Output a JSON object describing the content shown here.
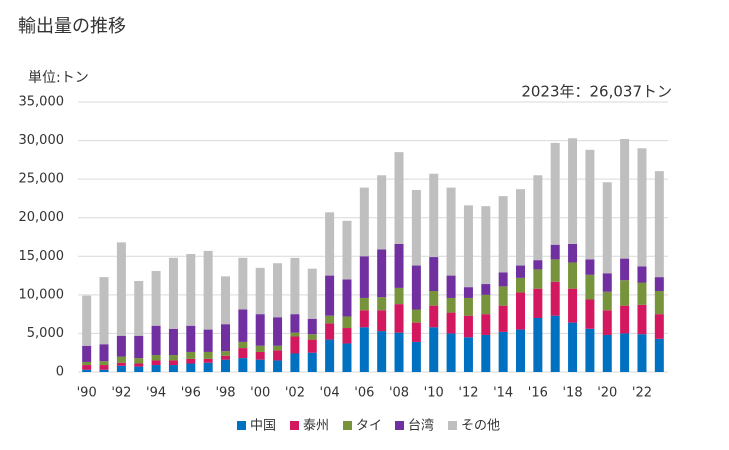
{
  "chart_data": {
    "type": "stacked-bar",
    "title": "輸出量の推移",
    "y_axis_label": "単位:トン",
    "annotation": "2023年：26,037トン",
    "categories": [
      "'90",
      null,
      "'92",
      null,
      "'94",
      null,
      "'96",
      null,
      "'98",
      null,
      "'00",
      null,
      "'02",
      null,
      "'04",
      null,
      "'06",
      null,
      "'08",
      null,
      "'10",
      null,
      "'12",
      null,
      "'14",
      null,
      "'16",
      null,
      "'18",
      null,
      "'20",
      null,
      "'22",
      null
    ],
    "series": [
      {
        "name": "中国",
        "color": "#0070c0",
        "values": [
          300,
          300,
          800,
          700,
          900,
          900,
          1100,
          1200,
          1600,
          1800,
          1600,
          1500,
          2400,
          2500,
          4200,
          3700,
          5800,
          5300,
          5100,
          3900,
          5800,
          5000,
          4500,
          4800,
          5200,
          5500,
          7000,
          7300,
          6400,
          5600,
          4800,
          5000,
          4900,
          4300
        ]
      },
      {
        "name": "泰州",
        "color": "#d4185f",
        "values": [
          600,
          600,
          400,
          400,
          600,
          600,
          600,
          500,
          500,
          1300,
          1000,
          1300,
          2200,
          1700,
          2100,
          2000,
          2200,
          2700,
          3700,
          2500,
          2800,
          2700,
          2800,
          2700,
          3400,
          4800,
          3800,
          4400,
          4400,
          3800,
          3200,
          3600,
          3800,
          3200
        ]
      },
      {
        "name": "タイ",
        "color": "#77933c",
        "values": [
          400,
          500,
          800,
          700,
          700,
          700,
          900,
          900,
          600,
          800,
          800,
          600,
          500,
          700,
          1000,
          1500,
          1600,
          1700,
          2100,
          1700,
          1900,
          1900,
          2300,
          2500,
          2500,
          1900,
          2500,
          2900,
          3400,
          3200,
          2400,
          3300,
          2900,
          3000
        ]
      },
      {
        "name": "台湾",
        "color": "#7030a0",
        "values": [
          2100,
          2200,
          2700,
          2900,
          3800,
          3400,
          3400,
          2900,
          3500,
          4200,
          4100,
          3700,
          2400,
          2000,
          5200,
          4800,
          5400,
          6200,
          5700,
          5700,
          4400,
          2900,
          1400,
          1400,
          1800,
          1600,
          1200,
          1900,
          2400,
          2000,
          2400,
          2800,
          2100,
          1800
        ]
      },
      {
        "name": "その他",
        "color": "#bfbfbf",
        "values": [
          6500,
          8700,
          12100,
          7100,
          7100,
          9200,
          9300,
          10200,
          6200,
          6700,
          6000,
          7000,
          7300,
          6500,
          8200,
          7600,
          8900,
          9600,
          11900,
          9800,
          10800,
          11400,
          10600,
          10100,
          9900,
          9900,
          11000,
          13200,
          13700,
          14200,
          11800,
          15500,
          15300,
          13737
        ]
      }
    ],
    "ylim": [
      0,
      35000
    ],
    "yticks": [
      0,
      {
        "value": 5000,
        "label": "5,000"
      },
      {
        "value": 10000,
        "label": "10,000"
      },
      {
        "value": 15000,
        "label": "15,000"
      },
      {
        "value": 20000,
        "label": "20,000"
      },
      {
        "value": 25000,
        "label": "25,000"
      },
      {
        "value": 30000,
        "label": "30,000"
      },
      {
        "value": 35000,
        "label": "35,000"
      }
    ],
    "grid": true
  }
}
